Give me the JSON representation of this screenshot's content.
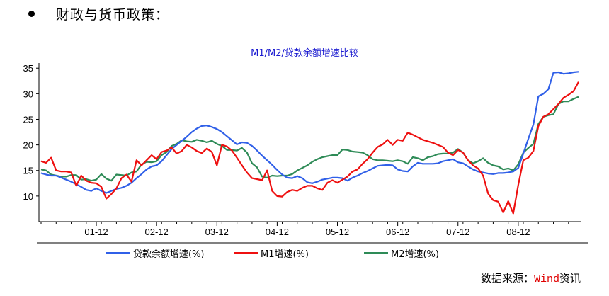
{
  "heading": {
    "text": "财政与货币政策："
  },
  "source": {
    "prefix": "数据来源：",
    "brand": "Wind",
    "suffix": "资讯"
  },
  "legend": {
    "items": [
      {
        "label": "贷款余额增速(%)",
        "color": "#3060e8"
      },
      {
        "label": "M1增速(%)",
        "color": "#ee1010"
      },
      {
        "label": "M2增速(%)",
        "color": "#2e8b57"
      }
    ]
  },
  "chart_data": {
    "type": "line",
    "title": "M1/M2/贷款余额增速比较",
    "xlabel": "",
    "ylabel": "",
    "x": [
      "01-01",
      "01-02",
      "01-03",
      "01-04",
      "01-05",
      "01-06",
      "01-07",
      "01-08",
      "01-09",
      "01-10",
      "01-11",
      "01-12",
      "02-01",
      "02-02",
      "02-03",
      "02-04",
      "02-05",
      "02-06",
      "02-07",
      "02-08",
      "02-09",
      "02-10",
      "02-11",
      "02-12",
      "03-01",
      "03-02",
      "03-03",
      "03-04",
      "03-05",
      "03-06",
      "03-07",
      "03-08",
      "03-09",
      "03-10",
      "03-11",
      "03-12",
      "04-01",
      "04-02",
      "04-03",
      "04-04",
      "04-05",
      "04-06",
      "04-07",
      "04-08",
      "04-09",
      "04-10",
      "04-11",
      "04-12",
      "05-01",
      "05-02",
      "05-03",
      "05-04",
      "05-05",
      "05-06",
      "05-07",
      "05-08",
      "05-09",
      "05-10",
      "05-11",
      "05-12",
      "06-01",
      "06-02",
      "06-03",
      "06-04",
      "06-05",
      "06-06",
      "06-07",
      "06-08",
      "06-09",
      "06-10",
      "06-11",
      "06-12",
      "07-01",
      "07-02",
      "07-03",
      "07-04",
      "07-05",
      "07-06",
      "07-07",
      "07-08",
      "07-09",
      "07-10",
      "07-11",
      "07-12",
      "08-01",
      "08-02",
      "08-03",
      "08-04",
      "08-05",
      "08-06",
      "08-07",
      "08-08",
      "08-09",
      "08-10",
      "08-11",
      "08-12",
      "09-01",
      "09-02",
      "09-03",
      "09-04",
      "09-05",
      "09-06",
      "09-07",
      "09-08",
      "09-09",
      "09-10",
      "09-11",
      "09-12"
    ],
    "x_ticks": [
      "01-12",
      "02-12",
      "03-12",
      "04-12",
      "05-12",
      "06-12",
      "07-12",
      "08-12"
    ],
    "ylim": [
      5,
      36
    ],
    "y_ticks": [
      10,
      15,
      20,
      25,
      30,
      35
    ],
    "series": [
      {
        "name": "贷款余额增速(%)",
        "color": "#3060e8",
        "values": [
          14.5,
          14.2,
          14.0,
          14.0,
          13.6,
          13.2,
          12.8,
          12.3,
          11.8,
          11.2,
          11.0,
          11.5,
          11.0,
          10.6,
          11.0,
          11.4,
          11.6,
          12.0,
          12.6,
          13.5,
          14.3,
          15.2,
          15.8,
          16.0,
          16.8,
          18.0,
          19.2,
          20.0,
          20.8,
          21.6,
          22.5,
          23.2,
          23.7,
          23.8,
          23.5,
          23.1,
          22.5,
          21.7,
          20.9,
          20.1,
          20.5,
          20.4,
          19.8,
          18.9,
          17.9,
          17.0,
          16.1,
          15.1,
          14.2,
          13.6,
          13.5,
          13.9,
          13.5,
          12.7,
          12.5,
          12.8,
          13.2,
          13.4,
          13.6,
          13.6,
          13.5,
          13.0,
          13.6,
          14.0,
          14.5,
          14.9,
          15.4,
          15.9,
          16.0,
          16.1,
          16.0,
          15.2,
          14.9,
          14.8,
          15.8,
          16.5,
          16.3,
          16.3,
          16.3,
          16.4,
          16.8,
          17.0,
          17.2,
          16.6,
          16.4,
          15.8,
          15.2,
          14.8,
          14.6,
          14.4,
          14.3,
          14.5,
          14.5,
          14.6,
          14.8,
          15.5,
          18.3,
          21.2,
          24.0,
          29.5,
          30.0,
          30.9,
          34.1,
          34.2,
          33.9,
          34.0,
          34.2,
          34.3
        ]
      },
      {
        "name": "M1增速(%)",
        "color": "#ee1010",
        "values": [
          16.8,
          16.5,
          17.5,
          15.0,
          14.8,
          14.8,
          14.6,
          12.0,
          14.0,
          13.0,
          12.6,
          12.5,
          11.8,
          9.5,
          10.4,
          11.5,
          13.5,
          14.2,
          12.8,
          17.0,
          16.0,
          17.0,
          18.0,
          17.2,
          18.6,
          18.9,
          19.5,
          18.3,
          18.8,
          20.0,
          19.5,
          18.8,
          18.4,
          19.3,
          18.6,
          16.0,
          20.0,
          19.7,
          18.9,
          17.5,
          16.0,
          14.6,
          13.5,
          13.3,
          13.1,
          15.0,
          11.0,
          10.0,
          9.9,
          10.8,
          11.2,
          11.0,
          11.6,
          12.0,
          12.0,
          11.5,
          11.2,
          12.6,
          13.1,
          12.6,
          13.2,
          13.8,
          14.8,
          15.2,
          16.3,
          17.2,
          18.5,
          19.6,
          20.1,
          21.0,
          20.0,
          21.0,
          20.8,
          22.4,
          22.0,
          21.5,
          21.0,
          20.7,
          20.4,
          20.0,
          19.6,
          18.5,
          18.0,
          19.0,
          18.5,
          17.0,
          16.0,
          15.4,
          14.0,
          10.5,
          9.2,
          8.9,
          6.8,
          9.0,
          6.6,
          12.2,
          17.0,
          17.5,
          18.8,
          23.7,
          25.5,
          26.0,
          27.0,
          28.0,
          29.2,
          29.8,
          30.5,
          32.3
        ]
      },
      {
        "name": "M2增速(%)",
        "color": "#2e8b57",
        "values": [
          15.2,
          15.0,
          14.2,
          14.0,
          13.8,
          13.8,
          14.1,
          14.1,
          13.2,
          13.3,
          13.0,
          13.2,
          14.3,
          13.4,
          13.0,
          14.2,
          14.1,
          14.0,
          14.6,
          14.8,
          16.2,
          16.7,
          16.6,
          16.8,
          18.0,
          18.6,
          19.8,
          20.2,
          20.9,
          20.7,
          20.6,
          21.0,
          20.8,
          20.5,
          20.8,
          20.2,
          19.8,
          19.0,
          19.0,
          18.9,
          19.4,
          18.5,
          16.4,
          15.6,
          13.8,
          13.6,
          14.0,
          13.9,
          14.0,
          14.0,
          14.3,
          15.0,
          15.5,
          16.0,
          16.7,
          17.2,
          17.6,
          17.8,
          18.0,
          18.0,
          19.1,
          19.0,
          18.7,
          18.6,
          18.5,
          18.0,
          17.2,
          17.0,
          17.0,
          16.9,
          16.8,
          17.0,
          16.8,
          16.3,
          17.6,
          17.4,
          17.0,
          17.6,
          17.8,
          18.2,
          18.3,
          18.3,
          18.5,
          19.2,
          18.5,
          17.0,
          16.4,
          16.8,
          17.4,
          16.5,
          16.0,
          15.8,
          15.2,
          15.4,
          15.0,
          16.2,
          18.5,
          19.4,
          20.2,
          24.1,
          25.5,
          25.8,
          26.0,
          28.0,
          28.5,
          28.5,
          29.0,
          29.4
        ]
      }
    ],
    "grid": false,
    "legend_position": "bottom"
  }
}
